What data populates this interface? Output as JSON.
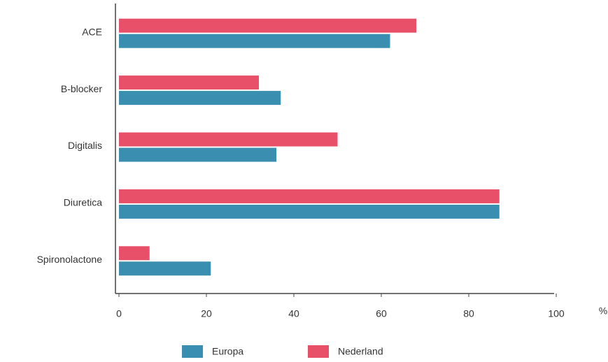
{
  "chart_data": {
    "type": "bar",
    "orientation": "horizontal",
    "categories": [
      "ACE",
      "B-blocker",
      "Digitalis",
      "Diuretica",
      "Spironolactone"
    ],
    "series": [
      {
        "name": "Europa",
        "color": "#3a8fb0",
        "values": [
          62,
          37,
          36,
          87,
          21
        ]
      },
      {
        "name": "Nederland",
        "color": "#e8506a",
        "values": [
          68,
          32,
          50,
          87,
          7
        ]
      }
    ],
    "xlabel": "%",
    "xlim": [
      0,
      100
    ],
    "xticks": [
      0,
      20,
      40,
      60,
      80,
      100
    ],
    "legend": "bottom"
  }
}
